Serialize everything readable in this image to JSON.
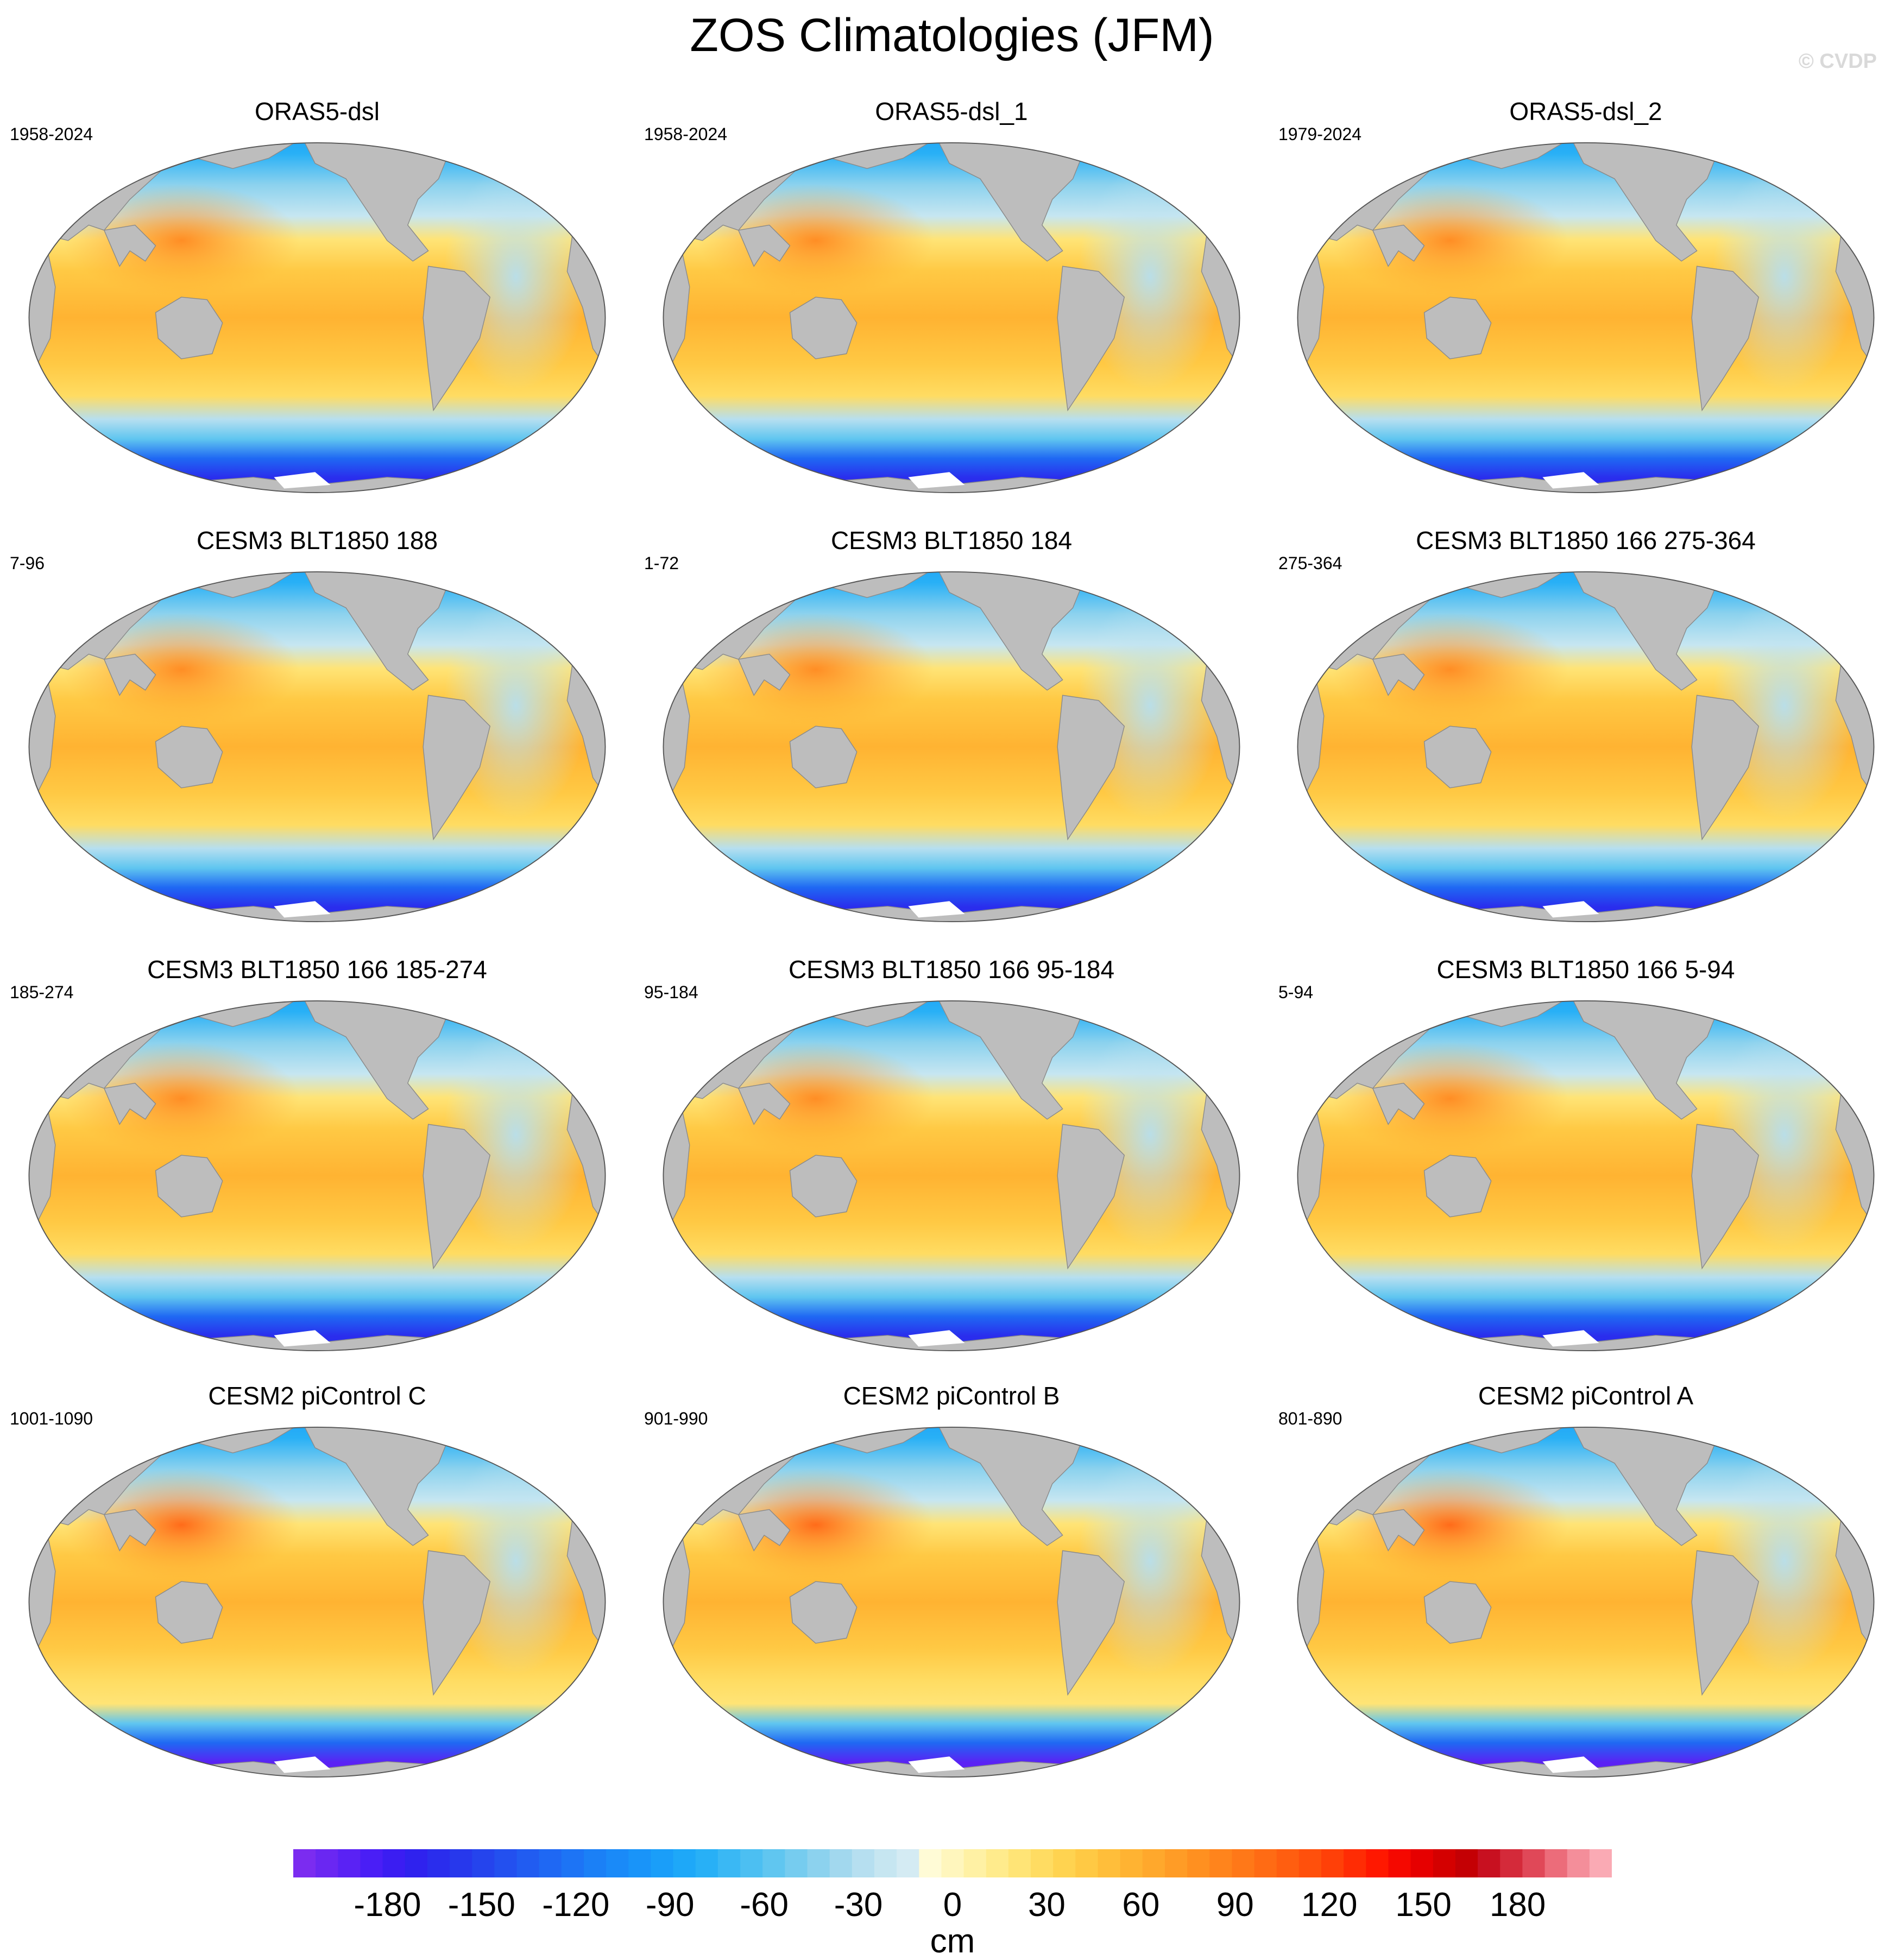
{
  "title": "ZOS Climatologies (JFM)",
  "watermark": "© CVDP",
  "panels": [
    {
      "title": "ORAS5-dsl",
      "years": "1958-2024",
      "variant": "obs"
    },
    {
      "title": "ORAS5-dsl_1",
      "years": "1958-2024",
      "variant": "obs"
    },
    {
      "title": "ORAS5-dsl_2",
      "years": "1979-2024",
      "variant": "obs"
    },
    {
      "title": "CESM3 BLT1850 188",
      "years": "7-96",
      "variant": "cesm3"
    },
    {
      "title": "CESM3 BLT1850 184",
      "years": "1-72",
      "variant": "cesm3"
    },
    {
      "title": "CESM3 BLT1850 166 275-364",
      "years": "275-364",
      "variant": "cesm3"
    },
    {
      "title": "CESM3 BLT1850 166 185-274",
      "years": "185-274",
      "variant": "cesm3"
    },
    {
      "title": "CESM3 BLT1850 166 95-184",
      "years": "95-184",
      "variant": "cesm3"
    },
    {
      "title": "CESM3 BLT1850 166 5-94",
      "years": "5-94",
      "variant": "cesm3"
    },
    {
      "title": "CESM2 piControl C",
      "years": "1001-1090",
      "variant": "cesm2"
    },
    {
      "title": "CESM2 piControl B",
      "years": "901-990",
      "variant": "cesm2"
    },
    {
      "title": "CESM2 piControl A",
      "years": "801-890",
      "variant": "cesm2"
    }
  ],
  "colorbar": {
    "units": "cm",
    "ticks": [
      "-180",
      "-150",
      "-120",
      "-90",
      "-60",
      "-30",
      "0",
      "30",
      "60",
      "90",
      "120",
      "150",
      "180"
    ],
    "colors": [
      "#7b2cf0",
      "#6a27f2",
      "#5a22f4",
      "#4a1ef6",
      "#3b1df2",
      "#2f22ee",
      "#2a2ded",
      "#2738ec",
      "#2544ed",
      "#2350ef",
      "#215cf1",
      "#1f68f3",
      "#1d74f5",
      "#1b80f6",
      "#1a8af8",
      "#1994f9",
      "#1a9ef9",
      "#1ea8f8",
      "#28b0f6",
      "#3ab8f4",
      "#4cbff2",
      "#60c6f0",
      "#76ccef",
      "#8cd2ee",
      "#a2d8ee",
      "#b6dff0",
      "#c6e6f1",
      "#d4ebf3",
      "#fffbd6",
      "#fff6bd",
      "#fff1a4",
      "#ffeb8c",
      "#ffe476",
      "#ffdc62",
      "#ffd350",
      "#ffc944",
      "#ffbe3a",
      "#ffb332",
      "#ffa82c",
      "#ff9c26",
      "#ff9020",
      "#ff841c",
      "#ff7818",
      "#ff6b14",
      "#ff5e10",
      "#ff500c",
      "#ff4008",
      "#ff2c04",
      "#ff1800",
      "#f50800",
      "#e60000",
      "#d40000",
      "#c40004",
      "#c81020",
      "#d42a3a",
      "#e04858",
      "#ec6c7a",
      "#f48e9a",
      "#faaab4"
    ],
    "tick_values": [
      -180,
      -150,
      -120,
      -90,
      -60,
      -30,
      0,
      30,
      60,
      90,
      120,
      150,
      180
    ],
    "range": [
      -210,
      210
    ]
  }
}
